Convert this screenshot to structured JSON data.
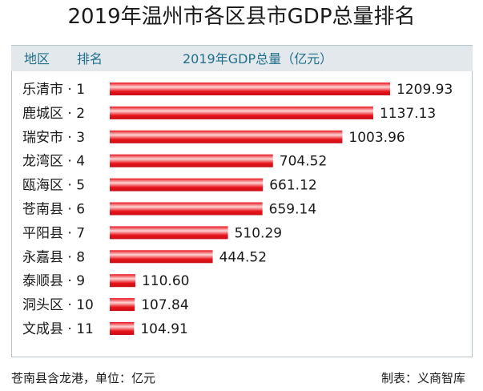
{
  "title": "2019年温州市各区县市GDP总量排名",
  "header": {
    "region": "地区",
    "rank": "排名",
    "metric": "2019年GDP总量（亿元）"
  },
  "footer": {
    "note": "苍南县含龙港，单位：亿元",
    "source": "制表：义商智库"
  },
  "colors": {
    "bar": "#e8141c",
    "bar_highlight": "#ffd5d5",
    "header_bg": "#e3e8ec",
    "header_text": "#1f6f8b"
  },
  "chart_data": {
    "type": "bar",
    "orientation": "horizontal",
    "categories": [
      "乐清市 · 1",
      "鹿城区 · 2",
      "瑞安市 · 3",
      "龙湾区 · 4",
      "瓯海区 · 5",
      "苍南县 · 6",
      "平阳县 · 7",
      "永嘉县 · 8",
      "泰顺县 · 9",
      "洞头区 · 10",
      "文成县 · 11"
    ],
    "values": [
      1209.93,
      1137.13,
      1003.96,
      704.52,
      661.12,
      659.14,
      510.29,
      444.52,
      110.6,
      107.84,
      104.91
    ],
    "value_labels": [
      "1209.93",
      "1137.13",
      "1003.96",
      "704.52",
      "661.12",
      "659.14",
      "510.29",
      "444.52",
      "110.60",
      "107.84",
      "104.91"
    ],
    "title": "2019年温州市各区县市GDP总量排名",
    "xlabel": "2019年GDP总量（亿元）",
    "ylabel": "",
    "xlim": [
      0,
      1209.93
    ],
    "grid": false,
    "legend": "none"
  }
}
